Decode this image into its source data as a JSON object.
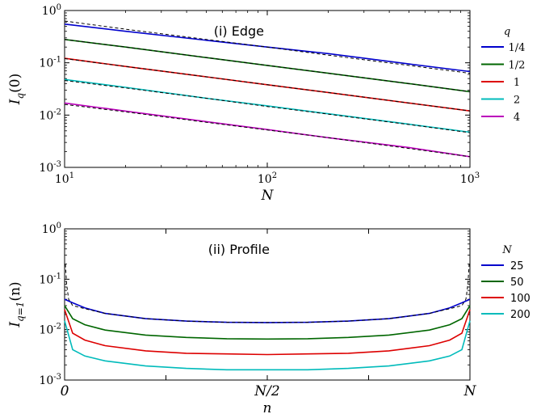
{
  "chart_data": [
    {
      "type": "line",
      "annotation": "(i) Edge",
      "xlabel": "N",
      "ylabel": "I_q(0)",
      "xscale": "log",
      "yscale": "log",
      "xlim": [
        10,
        1000
      ],
      "ylim": [
        0.001,
        1
      ],
      "x_ticks": [
        10,
        100,
        1000
      ],
      "x_tick_labels": [
        {
          "base": "10",
          "exp": "1"
        },
        {
          "base": "10",
          "exp": "2"
        },
        {
          "base": "10",
          "exp": "3"
        }
      ],
      "y_ticks": [
        0.001,
        0.01,
        0.1,
        1
      ],
      "y_tick_labels": [
        {
          "base": "10",
          "exp": "-3"
        },
        {
          "base": "10",
          "exp": "-2"
        },
        {
          "base": "10",
          "exp": "-1"
        },
        {
          "base": "10",
          "exp": "0"
        }
      ],
      "grid": false,
      "legend": {
        "title": "q",
        "placement": "outside-right"
      },
      "x": [
        10,
        20,
        50,
        100,
        200,
        500,
        1000
      ],
      "series": [
        {
          "name": "1/4",
          "color": "#0000cc",
          "values": [
            0.55,
            0.4,
            0.27,
            0.2,
            0.15,
            0.095,
            0.068
          ],
          "reference": [
            0.63,
            0.44,
            0.28,
            0.2,
            0.14,
            0.089,
            0.063
          ]
        },
        {
          "name": "1/2",
          "color": "#006600",
          "values": [
            0.28,
            0.2,
            0.126,
            0.089,
            0.063,
            0.04,
            0.028
          ],
          "reference": [
            0.28,
            0.2,
            0.126,
            0.089,
            0.063,
            0.04,
            0.028
          ]
        },
        {
          "name": "1",
          "color": "#dd0000",
          "values": [
            0.122,
            0.085,
            0.054,
            0.038,
            0.027,
            0.017,
            0.012
          ],
          "reference": [
            0.12,
            0.085,
            0.054,
            0.038,
            0.027,
            0.017,
            0.012
          ]
        },
        {
          "name": "2",
          "color": "#00bbbb",
          "values": [
            0.048,
            0.034,
            0.021,
            0.015,
            0.0106,
            0.0067,
            0.0047
          ],
          "reference": [
            0.046,
            0.033,
            0.021,
            0.0146,
            0.0104,
            0.0066,
            0.0046
          ]
        },
        {
          "name": "4",
          "color": "#bb00bb",
          "values": [
            0.017,
            0.0119,
            0.0075,
            0.0053,
            0.0037,
            0.0024,
            0.0016
          ],
          "reference": [
            0.016,
            0.0115,
            0.0073,
            0.0052,
            0.0037,
            0.0023,
            0.0016
          ]
        }
      ]
    },
    {
      "type": "line",
      "annotation": "(ii) Profile",
      "xlabel": "n",
      "ylabel": "I_{q=1}(n)",
      "xscale": "linear",
      "yscale": "log",
      "xlim": [
        0,
        1
      ],
      "ylim": [
        0.001,
        1
      ],
      "x_ticks": [
        0,
        0.5,
        1
      ],
      "x_tick_labels": [
        "0",
        "N/2",
        "N"
      ],
      "y_ticks": [
        0.001,
        0.01,
        0.1,
        1
      ],
      "y_tick_labels": [
        {
          "base": "10",
          "exp": "-3"
        },
        {
          "base": "10",
          "exp": "-2"
        },
        {
          "base": "10",
          "exp": "-1"
        },
        {
          "base": "10",
          "exp": "0"
        }
      ],
      "grid": false,
      "legend": {
        "title": "N",
        "placement": "outside-right"
      },
      "x": [
        0.0,
        0.02,
        0.05,
        0.1,
        0.2,
        0.3,
        0.4,
        0.5,
        0.6,
        0.7,
        0.8,
        0.9,
        0.95,
        0.98,
        1.0
      ],
      "series": [
        {
          "name": "25",
          "color": "#0000cc",
          "values": [
            0.04,
            0.034,
            0.027,
            0.021,
            0.0165,
            0.0148,
            0.014,
            0.0138,
            0.014,
            0.0148,
            0.0165,
            0.021,
            0.027,
            0.034,
            0.04
          ]
        },
        {
          "name": "50",
          "color": "#006600",
          "values": [
            0.03,
            0.0165,
            0.0125,
            0.0098,
            0.0078,
            0.007,
            0.0066,
            0.0065,
            0.0066,
            0.007,
            0.0078,
            0.0098,
            0.0125,
            0.0165,
            0.03
          ]
        },
        {
          "name": "100",
          "color": "#dd0000",
          "values": [
            0.025,
            0.0085,
            0.0062,
            0.0048,
            0.0038,
            0.0034,
            0.0033,
            0.0032,
            0.0033,
            0.0034,
            0.0038,
            0.0048,
            0.0062,
            0.0085,
            0.025
          ]
        },
        {
          "name": "200",
          "color": "#00bbbb",
          "values": [
            0.015,
            0.004,
            0.003,
            0.0024,
            0.0019,
            0.0017,
            0.0016,
            0.0016,
            0.0016,
            0.0017,
            0.0019,
            0.0024,
            0.003,
            0.004,
            0.015
          ]
        }
      ],
      "reference_x": [
        0.002,
        0.005,
        0.01,
        0.02,
        0.05,
        0.1,
        0.2,
        0.3,
        0.4,
        0.5,
        0.6,
        0.7,
        0.8,
        0.9,
        0.95,
        0.98,
        0.99,
        0.995,
        0.998
      ],
      "reference_values": [
        0.2,
        0.08,
        0.04,
        0.03,
        0.026,
        0.021,
        0.0165,
        0.0148,
        0.014,
        0.0138,
        0.014,
        0.0148,
        0.0165,
        0.021,
        0.026,
        0.03,
        0.04,
        0.08,
        0.2
      ]
    }
  ]
}
